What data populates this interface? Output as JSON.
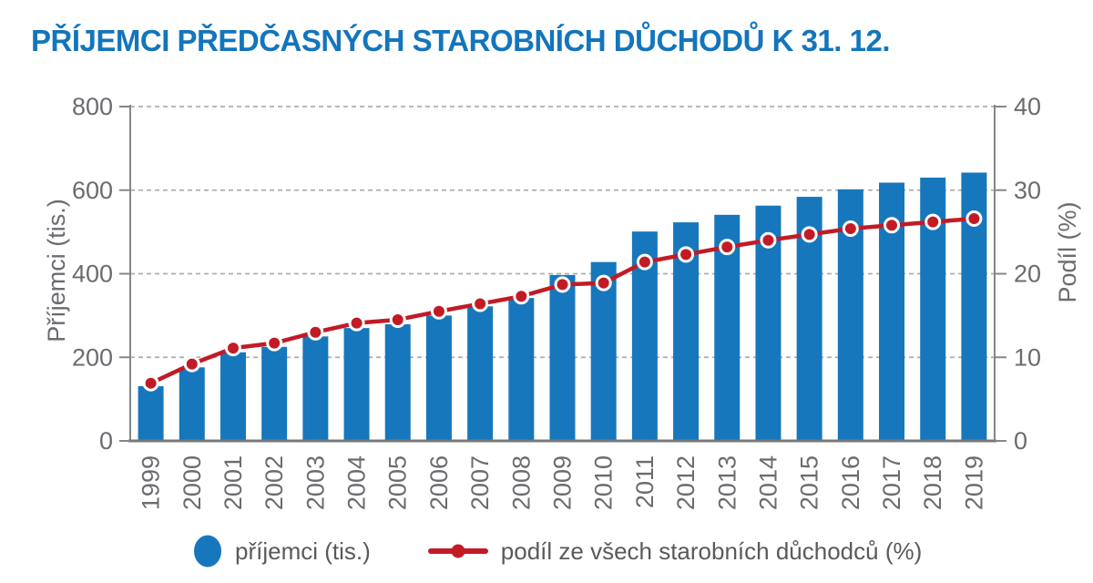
{
  "title": "PŘÍJEMCI PŘEDČASNÝCH STAROBNÍCH DŮCHODŮ K 31. 12.",
  "colors": {
    "title_blue": "#1375BC",
    "bar_blue": "#1777BC",
    "line_red": "#C21B26",
    "axis_gray": "#85878A",
    "baseline_gray": "#77787A",
    "grid_gray": "#ACAEB0",
    "text_gray": "#6A6C6F",
    "dot_ring_white": "#FFFFFF"
  },
  "chart_data": {
    "type": "bar+line",
    "categories": [
      "1999",
      "2000",
      "2001",
      "2002",
      "2003",
      "2004",
      "2005",
      "2006",
      "2007",
      "2008",
      "2009",
      "2010",
      "2011",
      "2012",
      "2013",
      "2014",
      "2015",
      "2016",
      "2017",
      "2018",
      "2019"
    ],
    "series": [
      {
        "name": "příjemci (tis.)",
        "type": "bar",
        "axis": "left",
        "values": [
          131,
          176,
          212,
          225,
          250,
          270,
          279,
          300,
          322,
          342,
          397,
          428,
          501,
          523,
          541,
          563,
          584,
          602,
          618,
          630,
          642
        ]
      },
      {
        "name": "podíl ze všech starobních důchodců (%)",
        "type": "line",
        "axis": "right",
        "values": [
          6.9,
          9.2,
          11.1,
          11.7,
          13.0,
          14.1,
          14.5,
          15.5,
          16.4,
          17.3,
          18.7,
          18.9,
          21.4,
          22.3,
          23.2,
          24.0,
          24.7,
          25.4,
          25.8,
          26.2,
          26.6
        ]
      }
    ],
    "left_axis": {
      "label": "Příjemci (tis.)",
      "min": 0,
      "max": 800,
      "ticks": [
        0,
        200,
        400,
        600,
        800
      ]
    },
    "right_axis": {
      "label": "Podíl  (%)",
      "min": 0,
      "max": 40,
      "ticks": [
        0,
        10,
        20,
        30,
        40
      ]
    },
    "grid": "horizontal-dashed",
    "legend_position": "bottom"
  },
  "legend": {
    "bar_label": "příjemci (tis.)",
    "line_label": "podíl ze všech starobních důchodců (%)"
  }
}
